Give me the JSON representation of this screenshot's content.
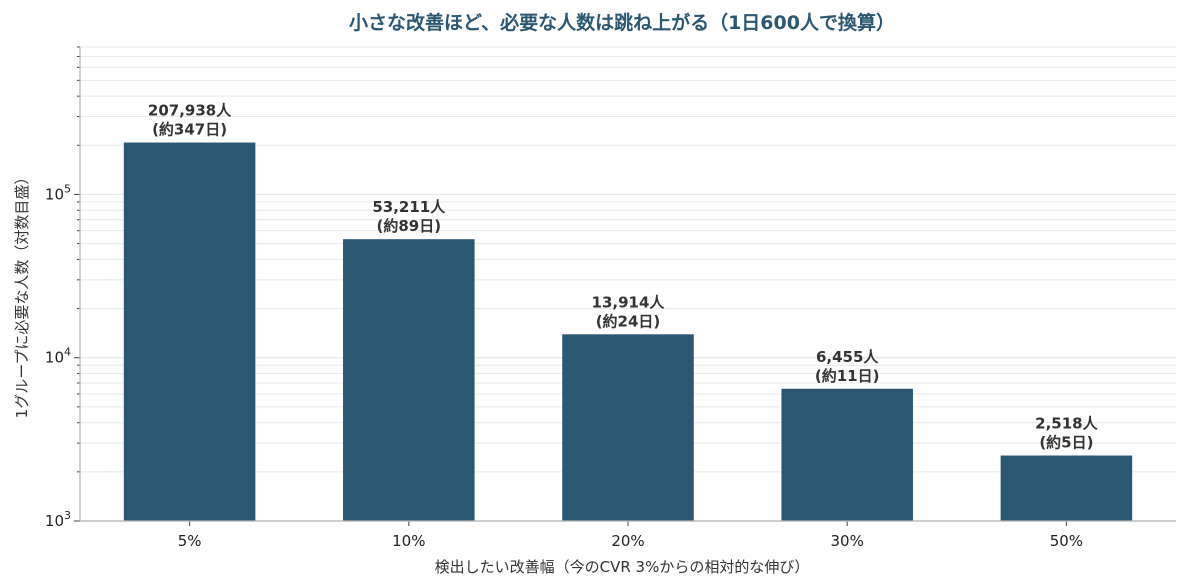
{
  "colors": {
    "bar": "#2b5772",
    "title": "#2b5772",
    "grid": "#e3ecea",
    "axis": "#b4b4b4"
  },
  "chart_data": {
    "type": "bar",
    "title": "小さな改善ほど、必要な人数は跳ね上がる（1日600人で換算）",
    "xlabel": "検出したい改善幅（今のCVR 3%からの相対的な伸び）",
    "ylabel": "1グループに必要な人数（対数目盛）",
    "y_scale": "log",
    "ylim": [
      1000,
      800000
    ],
    "y_ticks": [
      1000,
      10000,
      100000
    ],
    "grid": true,
    "categories": [
      "5%",
      "10%",
      "20%",
      "30%",
      "50%"
    ],
    "values": [
      207938,
      53211,
      13914,
      6455,
      2518
    ],
    "data_labels": [
      [
        "207,938人",
        "(約347日)"
      ],
      [
        "53,211人",
        "(約89日)"
      ],
      [
        "13,914人",
        "(約24日)"
      ],
      [
        "6,455人",
        "(約11日)"
      ],
      [
        "2,518人",
        "(約5日)"
      ]
    ]
  }
}
